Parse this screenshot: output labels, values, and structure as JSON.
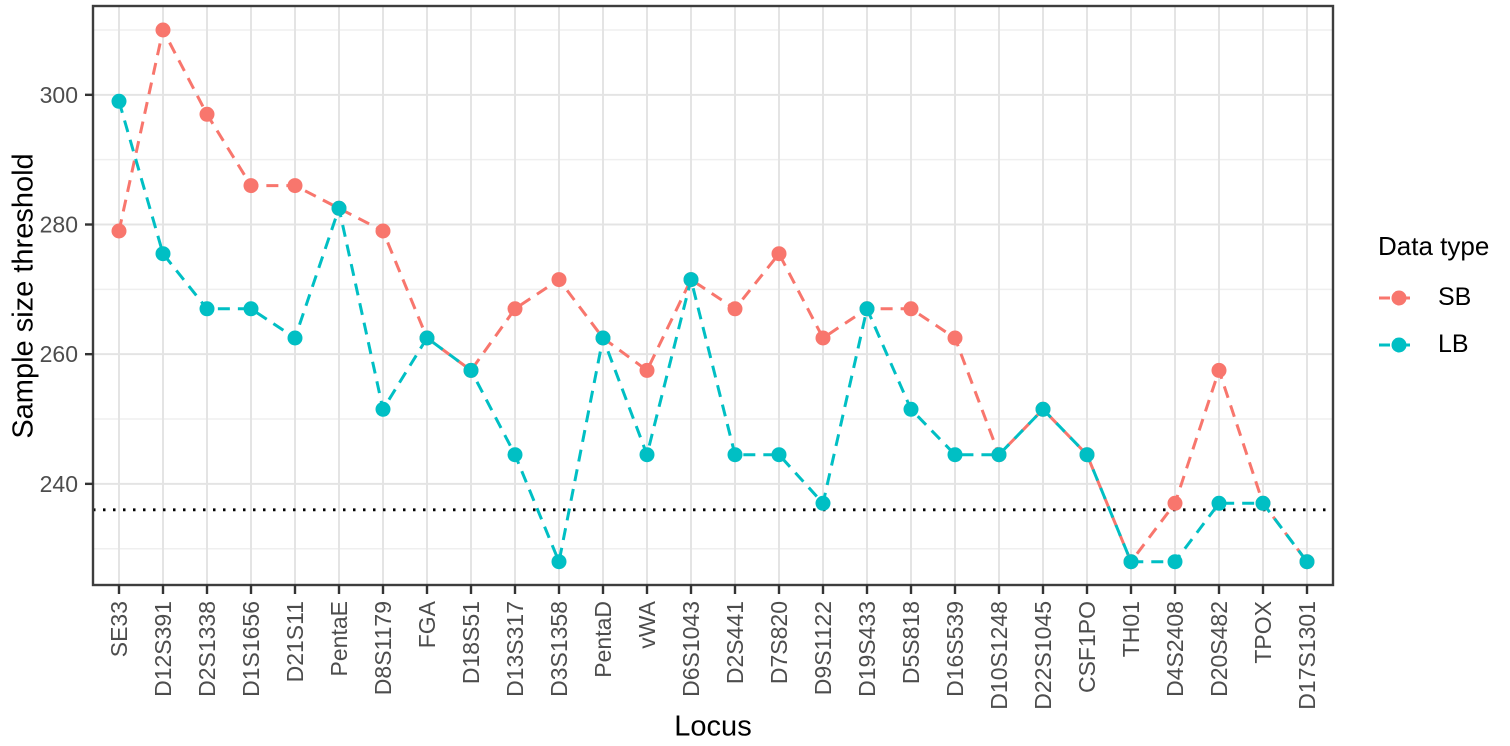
{
  "chart_data": {
    "type": "line",
    "title": "",
    "xlabel": "Locus",
    "ylabel": "Sample size threshold",
    "categories": [
      "SE33",
      "D12S391",
      "D2S1338",
      "D1S1656",
      "D21S11",
      "PentaE",
      "D8S1179",
      "FGA",
      "D18S51",
      "D13S317",
      "D3S1358",
      "PentaD",
      "vWA",
      "D6S1043",
      "D2S441",
      "D7S820",
      "D9S1122",
      "D19S433",
      "D5S818",
      "D16S539",
      "D10S1248",
      "D22S1045",
      "CSF1PO",
      "TH01",
      "D4S2408",
      "D20S482",
      "TPOX",
      "D17S1301"
    ],
    "series": [
      {
        "name": "SB",
        "color": "#F8766D",
        "linestyle": "dashed",
        "marker": "circle",
        "values": [
          279,
          310,
          297,
          286,
          286,
          282.5,
          279,
          262.5,
          257.5,
          267,
          271.5,
          262.5,
          257.5,
          271.5,
          267,
          275.5,
          262.5,
          267,
          267,
          262.5,
          244.5,
          251.5,
          244.5,
          228,
          237,
          257.5,
          237,
          228
        ]
      },
      {
        "name": "LB",
        "color": "#00BFC4",
        "linestyle": "dashed",
        "marker": "circle",
        "values": [
          299,
          275.5,
          267,
          267,
          262.5,
          282.5,
          251.5,
          262.5,
          257.5,
          244.5,
          228,
          262.5,
          244.5,
          271.5,
          244.5,
          244.5,
          237,
          267,
          251.5,
          244.5,
          244.5,
          251.5,
          244.5,
          228,
          228,
          237,
          237,
          228
        ]
      }
    ],
    "threshold_line": {
      "value": 236,
      "style": "dotted",
      "color": "#000000"
    },
    "yticks": [
      240,
      260,
      280,
      300
    ],
    "minor_yticks": [
      230,
      250,
      270,
      290,
      310
    ],
    "ylim": [
      224.4,
      313.7
    ],
    "grid": true,
    "legend": {
      "title": "Data type",
      "position": "right",
      "entries": [
        "SB",
        "LB"
      ]
    }
  },
  "colors": {
    "background": "#ffffff",
    "axis_text": "#4d4d4d",
    "axis_title": "#000000",
    "grid_major": "#e4e4e4",
    "grid_minor": "#efefef",
    "panel_border": "#3d3d3d",
    "tick_mark": "#333333"
  }
}
